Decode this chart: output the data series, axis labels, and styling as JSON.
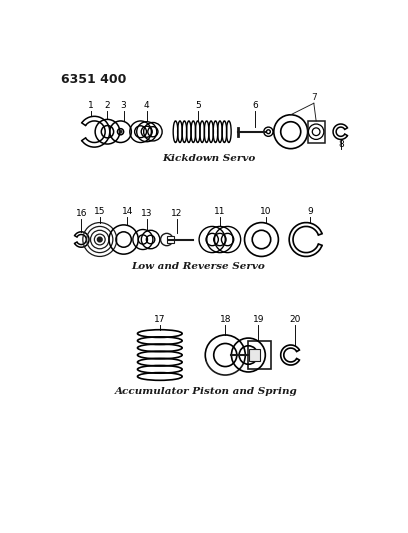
{
  "title": "6351 400",
  "bg_color": "#ffffff",
  "line_color": "#1a1a1a",
  "section1_label": "Kickdown Servo",
  "section2_label": "Low and Reverse Servo",
  "section3_label": "Accumulator Piston and Spring",
  "fig_width": 4.08,
  "fig_height": 5.33,
  "dpi": 100
}
